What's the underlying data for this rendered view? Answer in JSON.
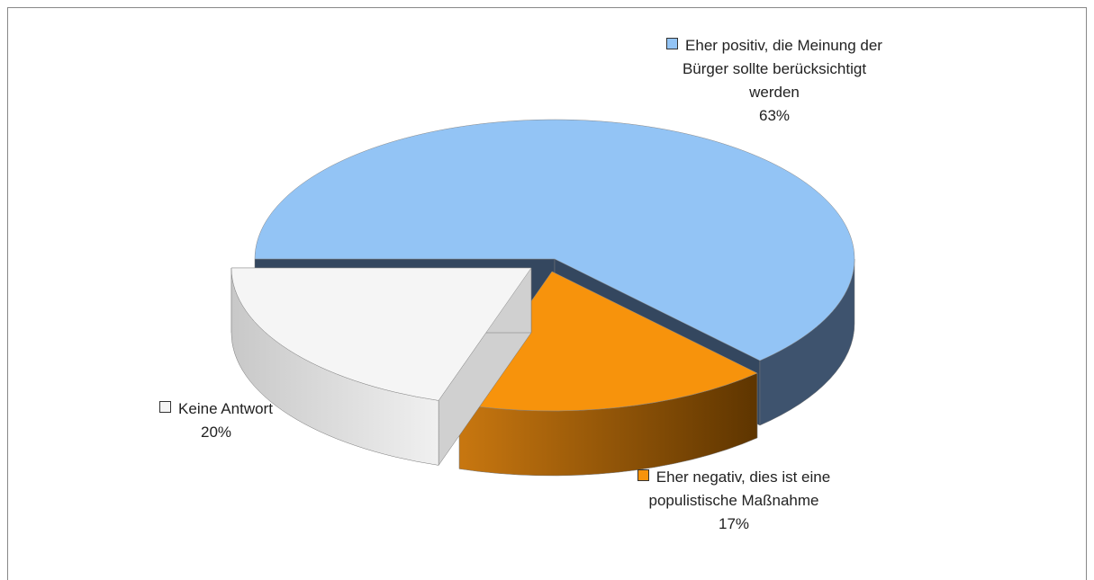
{
  "chart_data": {
    "type": "pie3d",
    "categories": [
      "Eher positiv, die Meinung der Bürger sollte berücksichtigt werden",
      "Eher negativ, dies ist eine populistische Maßnahme",
      "Keine Antwort"
    ],
    "values": [
      63,
      17,
      20
    ],
    "value_labels": [
      "63%",
      "17%",
      "20%"
    ],
    "colors": [
      "#93c4f5",
      "#f7930c",
      "#f5f5f5"
    ]
  }
}
